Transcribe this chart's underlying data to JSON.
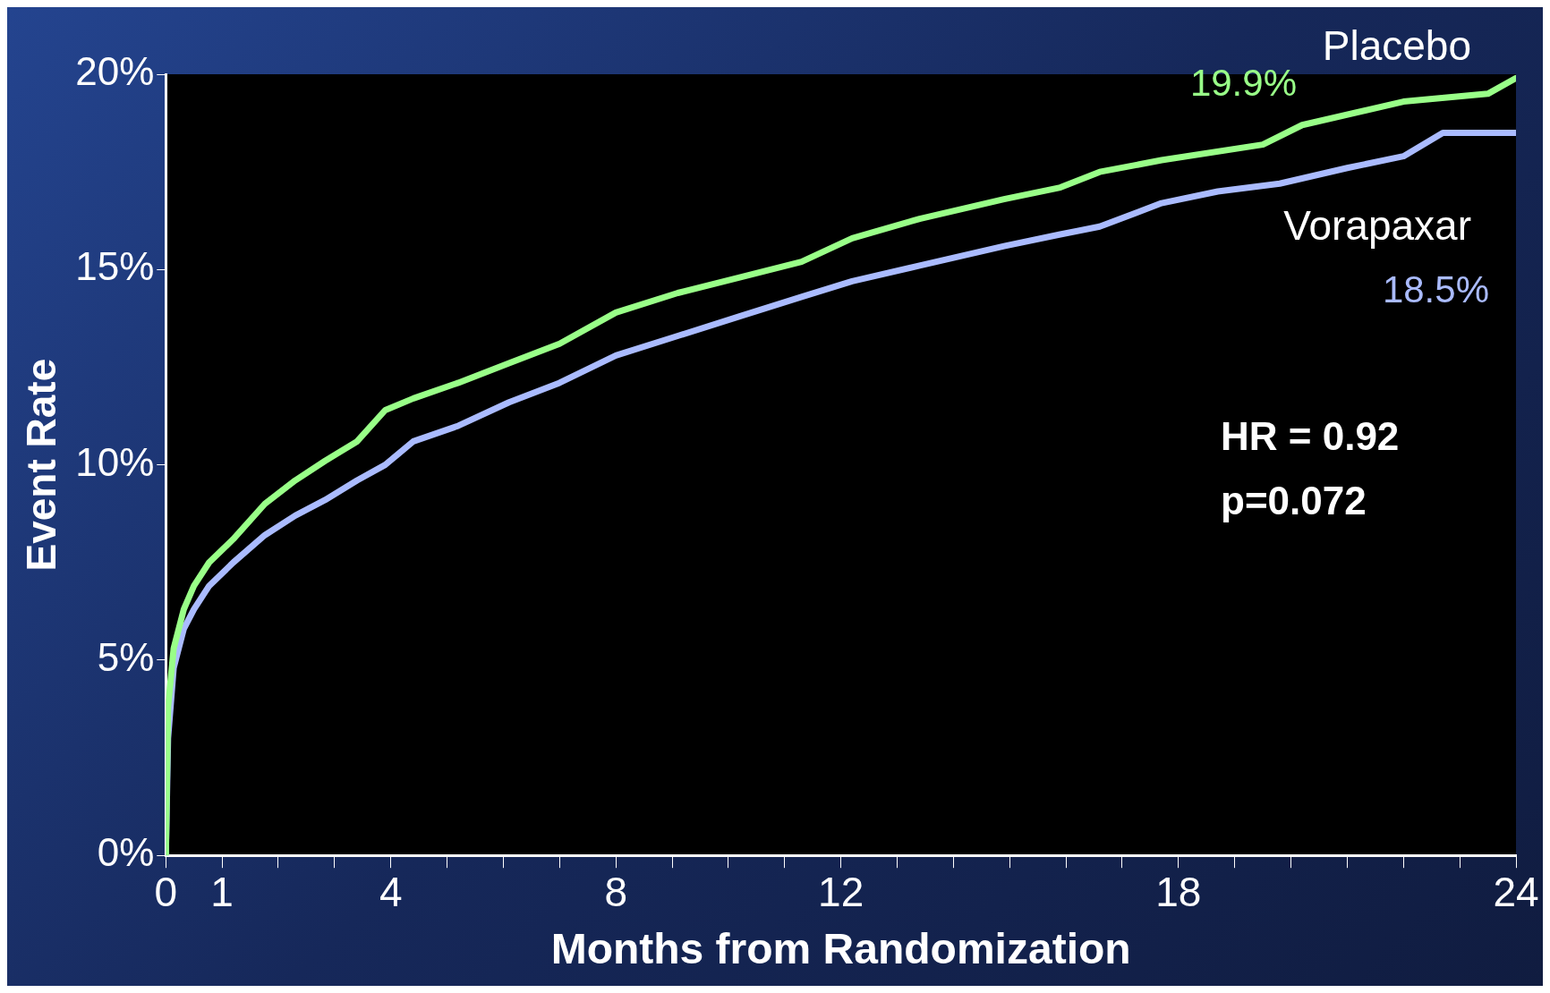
{
  "chart_data": {
    "type": "line",
    "xlabel": "Months from Randomization",
    "ylabel": "Event Rate",
    "xlim": [
      0,
      24
    ],
    "ylim": [
      0,
      20
    ],
    "xticks": [
      0,
      1,
      {
        "value": 2,
        "label": null
      },
      {
        "value": 3,
        "label": null
      },
      4,
      {
        "value": 5,
        "label": null
      },
      {
        "value": 6,
        "label": null
      },
      {
        "value": 7,
        "label": null
      },
      8,
      {
        "value": 9,
        "label": null
      },
      {
        "value": 10,
        "label": null
      },
      {
        "value": 11,
        "label": null
      },
      12,
      {
        "value": 13,
        "label": null
      },
      {
        "value": 14,
        "label": null
      },
      {
        "value": 15,
        "label": null
      },
      {
        "value": 16,
        "label": null
      },
      {
        "value": 17,
        "label": null
      },
      18,
      {
        "value": 19,
        "label": null
      },
      {
        "value": 20,
        "label": null
      },
      {
        "value": 21,
        "label": null
      },
      {
        "value": 22,
        "label": null
      },
      {
        "value": 23,
        "label": null
      },
      24
    ],
    "yticks": [
      {
        "value": 0,
        "label": "0%"
      },
      {
        "value": 5,
        "label": "5%"
      },
      {
        "value": 10,
        "label": "10%"
      },
      {
        "value": 15,
        "label": "15%"
      },
      {
        "value": 20,
        "label": "20%"
      }
    ],
    "grid": false,
    "legend": false,
    "marker": "none",
    "line_style": "solid",
    "series": [
      {
        "name": "Placebo",
        "color": "#99ff88",
        "x": [
          0,
          0.04,
          0.14,
          0.32,
          0.5,
          0.77,
          1.2,
          1.76,
          2.3,
          2.83,
          3.4,
          3.9,
          4.4,
          5.2,
          6.1,
          7.0,
          8.0,
          9.1,
          10.2,
          11.3,
          12.2,
          13.4,
          14.9,
          15.9,
          16.6,
          17.7,
          19.5,
          20.2,
          22.0,
          23.5,
          24
        ],
        "values": [
          0,
          3.8,
          5.3,
          6.3,
          6.9,
          7.5,
          8.1,
          9.0,
          9.6,
          10.1,
          10.6,
          11.4,
          11.7,
          12.1,
          12.6,
          13.1,
          13.9,
          14.4,
          14.8,
          15.2,
          15.8,
          16.3,
          16.8,
          17.1,
          17.5,
          17.8,
          18.2,
          18.7,
          19.3,
          19.5,
          19.9
        ]
      },
      {
        "name": "Vorapaxar",
        "color": "#aabbff",
        "x": [
          0,
          0.04,
          0.14,
          0.32,
          0.5,
          0.77,
          1.2,
          1.76,
          2.3,
          2.83,
          3.4,
          3.9,
          4.4,
          5.2,
          6.1,
          7.0,
          8.0,
          9.1,
          10.2,
          11.3,
          12.2,
          13.4,
          14.9,
          15.9,
          16.6,
          17.7,
          18.7,
          19.8,
          21.0,
          22.0,
          22.7,
          24
        ],
        "values": [
          0,
          3.0,
          4.8,
          5.8,
          6.3,
          6.9,
          7.5,
          8.2,
          8.7,
          9.1,
          9.6,
          10.0,
          10.6,
          11.0,
          11.6,
          12.1,
          12.8,
          13.3,
          13.8,
          14.3,
          14.7,
          15.1,
          15.6,
          15.9,
          16.1,
          16.7,
          17.0,
          17.2,
          17.6,
          17.9,
          18.5,
          18.5
        ]
      }
    ],
    "annotations": [
      "19.9%",
      "18.5%",
      "HR = 0.92",
      "p=0.072"
    ]
  }
}
